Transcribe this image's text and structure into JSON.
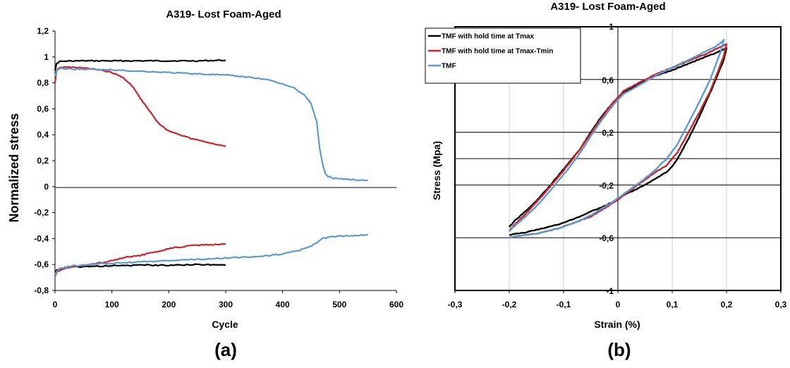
{
  "colors": {
    "black": "#000000",
    "red": "#cc2229",
    "blue": "#5b9bd5",
    "grid": "#d0d0d0"
  },
  "chart_data": [
    {
      "type": "line",
      "panel_label": "(a)",
      "title": "A319- Lost Foam-Aged",
      "xlabel": "Cycle",
      "ylabel": "Normalized stress",
      "xlim": [
        0,
        600
      ],
      "ylim": [
        -0.8,
        1.2
      ],
      "x_ticks": [
        0,
        100,
        200,
        300,
        400,
        500,
        600
      ],
      "x_tick_labels": [
        "0",
        "100",
        "200",
        "300",
        "400",
        "500",
        "600"
      ],
      "y_ticks": [
        -0.8,
        -0.6,
        -0.4,
        -0.2,
        0,
        0.2,
        0.4,
        0.6,
        0.8,
        1,
        1.2
      ],
      "y_tick_labels": [
        "-0,8",
        "-0,6",
        "-0,4",
        "-0,2",
        "0",
        "0,2",
        "0,4",
        "0,6",
        "0,8",
        "1",
        "1,2"
      ],
      "grid": false,
      "series": [
        {
          "color_key": "black",
          "segments": [
            {
              "x": [
                0,
                3,
                8,
                20,
                50,
                100,
                150,
                200,
                250,
                300
              ],
              "y": [
                0.9,
                0.95,
                0.965,
                0.968,
                0.97,
                0.97,
                0.97,
                0.97,
                0.97,
                0.975
              ]
            },
            {
              "x": [
                0,
                3,
                10,
                30,
                60,
                100,
                150,
                200,
                250,
                300
              ],
              "y": [
                -0.66,
                -0.64,
                -0.63,
                -0.62,
                -0.615,
                -0.61,
                -0.605,
                -0.605,
                -0.6,
                -0.605
              ]
            }
          ]
        },
        {
          "color_key": "red",
          "segments": [
            {
              "x": [
                0,
                3,
                10,
                20,
                40,
                60,
                80,
                100,
                110,
                120,
                130,
                140,
                150,
                160,
                170,
                180,
                190,
                200,
                220,
                240,
                260,
                280,
                300
              ],
              "y": [
                0.8,
                0.9,
                0.92,
                0.92,
                0.92,
                0.91,
                0.9,
                0.88,
                0.86,
                0.84,
                0.8,
                0.75,
                0.68,
                0.62,
                0.56,
                0.5,
                0.46,
                0.43,
                0.4,
                0.37,
                0.35,
                0.33,
                0.31
              ]
            },
            {
              "x": [
                0,
                3,
                10,
                30,
                60,
                90,
                110,
                130,
                150,
                170,
                190,
                210,
                230,
                250,
                270,
                300
              ],
              "y": [
                -0.69,
                -0.66,
                -0.64,
                -0.62,
                -0.6,
                -0.58,
                -0.56,
                -0.54,
                -0.53,
                -0.51,
                -0.49,
                -0.47,
                -0.46,
                -0.45,
                -0.45,
                -0.44
              ]
            }
          ]
        },
        {
          "color_key": "blue",
          "segments": [
            {
              "x": [
                0,
                3,
                10,
                50,
                100,
                150,
                200,
                250,
                300,
                350,
                380,
                400,
                420,
                440,
                450,
                460,
                465,
                470,
                475,
                480,
                490,
                500,
                520,
                550
              ],
              "y": [
                0.85,
                0.9,
                0.91,
                0.905,
                0.9,
                0.89,
                0.88,
                0.87,
                0.86,
                0.84,
                0.82,
                0.79,
                0.76,
                0.7,
                0.64,
                0.5,
                0.3,
                0.18,
                0.1,
                0.08,
                0.065,
                0.06,
                0.055,
                0.05
              ]
            },
            {
              "x": [
                0,
                3,
                10,
                30,
                60,
                100,
                150,
                200,
                250,
                300,
                350,
                400,
                430,
                450,
                460,
                470,
                480,
                500,
                520,
                550
              ],
              "y": [
                -0.68,
                -0.65,
                -0.63,
                -0.61,
                -0.6,
                -0.59,
                -0.58,
                -0.57,
                -0.56,
                -0.55,
                -0.54,
                -0.52,
                -0.49,
                -0.46,
                -0.43,
                -0.4,
                -0.39,
                -0.38,
                -0.38,
                -0.37
              ]
            }
          ]
        }
      ]
    },
    {
      "type": "line",
      "panel_label": "(b)",
      "title": "A319- Lost Foam-Aged",
      "xlabel": "Strain (%)",
      "ylabel": "Stress (Mpa)",
      "xlim": [
        -0.3,
        0.3
      ],
      "ylim": [
        -1,
        1
      ],
      "x_ticks": [
        -0.3,
        -0.2,
        -0.1,
        0,
        0.1,
        0.2,
        0.3
      ],
      "x_tick_labels": [
        "-0,3",
        "-0,2",
        "-0,1",
        "0",
        "0,1",
        "0,2",
        "0,3"
      ],
      "y_ticks": [
        -1,
        -0.6,
        -0.2,
        0.2,
        0.6,
        1
      ],
      "y_tick_labels": [
        "-1",
        "-0,6",
        "-0,2",
        "0,2",
        "0,6",
        "1"
      ],
      "grid": true,
      "legend_position": "top-left",
      "series": [
        {
          "name": "TMF with hold time at Tmax",
          "color_key": "black",
          "x": [
            -0.2,
            -0.19,
            -0.17,
            -0.15,
            -0.13,
            -0.11,
            -0.09,
            -0.07,
            -0.05,
            -0.03,
            -0.01,
            0.01,
            0.04,
            0.07,
            0.1,
            0.13,
            0.16,
            0.18,
            0.195,
            0.2,
            0.195,
            0.185,
            0.17,
            0.15,
            0.13,
            0.11,
            0.1,
            0.09,
            0.07,
            0.05,
            0.03,
            0.01,
            -0.01,
            -0.03,
            -0.05,
            -0.07,
            -0.09,
            -0.11,
            -0.13,
            -0.15,
            -0.17,
            -0.19,
            -0.2
          ],
          "y": [
            -0.52,
            -0.47,
            -0.4,
            -0.32,
            -0.23,
            -0.13,
            -0.03,
            0.07,
            0.2,
            0.32,
            0.42,
            0.5,
            0.57,
            0.63,
            0.67,
            0.72,
            0.77,
            0.8,
            0.83,
            0.84,
            0.75,
            0.65,
            0.5,
            0.32,
            0.15,
            0.0,
            -0.06,
            -0.1,
            -0.15,
            -0.2,
            -0.24,
            -0.28,
            -0.33,
            -0.37,
            -0.4,
            -0.44,
            -0.47,
            -0.5,
            -0.52,
            -0.54,
            -0.56,
            -0.57,
            -0.58
          ]
        },
        {
          "name": "TMF with hold time at Tmax-Tmin",
          "color_key": "red",
          "x": [
            -0.2,
            -0.19,
            -0.17,
            -0.15,
            -0.13,
            -0.11,
            -0.09,
            -0.07,
            -0.05,
            -0.03,
            -0.01,
            0.01,
            0.04,
            0.07,
            0.1,
            0.13,
            0.16,
            0.18,
            0.195,
            0.2,
            0.195,
            0.185,
            0.17,
            0.15,
            0.13,
            0.11,
            0.09,
            0.07,
            0.05,
            0.03,
            0.01,
            -0.01,
            -0.03,
            -0.05,
            -0.07,
            -0.09,
            -0.11,
            -0.13,
            -0.15,
            -0.17,
            -0.19,
            -0.2
          ],
          "y": [
            -0.55,
            -0.5,
            -0.42,
            -0.33,
            -0.24,
            -0.14,
            -0.04,
            0.07,
            0.19,
            0.31,
            0.42,
            0.51,
            0.58,
            0.64,
            0.69,
            0.74,
            0.79,
            0.83,
            0.86,
            0.87,
            0.78,
            0.67,
            0.51,
            0.35,
            0.2,
            0.05,
            -0.05,
            -0.1,
            -0.16,
            -0.22,
            -0.28,
            -0.34,
            -0.39,
            -0.44,
            -0.47,
            -0.5,
            -0.53,
            -0.55,
            -0.57,
            -0.58,
            -0.59,
            -0.6
          ]
        },
        {
          "name": "TMF",
          "color_key": "blue",
          "x": [
            -0.2,
            -0.19,
            -0.17,
            -0.15,
            -0.13,
            -0.11,
            -0.09,
            -0.07,
            -0.05,
            -0.03,
            -0.01,
            0.01,
            0.04,
            0.07,
            0.1,
            0.13,
            0.16,
            0.18,
            0.19,
            0.195,
            0.19,
            0.18,
            0.17,
            0.15,
            0.13,
            0.11,
            0.09,
            0.07,
            0.05,
            0.03,
            0.01,
            -0.01,
            -0.03,
            -0.05,
            -0.07,
            -0.09,
            -0.11,
            -0.13,
            -0.15,
            -0.17,
            -0.19,
            -0.2
          ],
          "y": [
            -0.55,
            -0.51,
            -0.44,
            -0.36,
            -0.27,
            -0.17,
            -0.07,
            0.04,
            0.17,
            0.29,
            0.4,
            0.49,
            0.56,
            0.63,
            0.69,
            0.75,
            0.81,
            0.85,
            0.88,
            0.9,
            0.82,
            0.71,
            0.6,
            0.43,
            0.27,
            0.11,
            0.0,
            -0.08,
            -0.15,
            -0.21,
            -0.27,
            -0.33,
            -0.38,
            -0.43,
            -0.47,
            -0.5,
            -0.53,
            -0.55,
            -0.57,
            -0.58,
            -0.59,
            -0.6
          ]
        }
      ]
    }
  ]
}
